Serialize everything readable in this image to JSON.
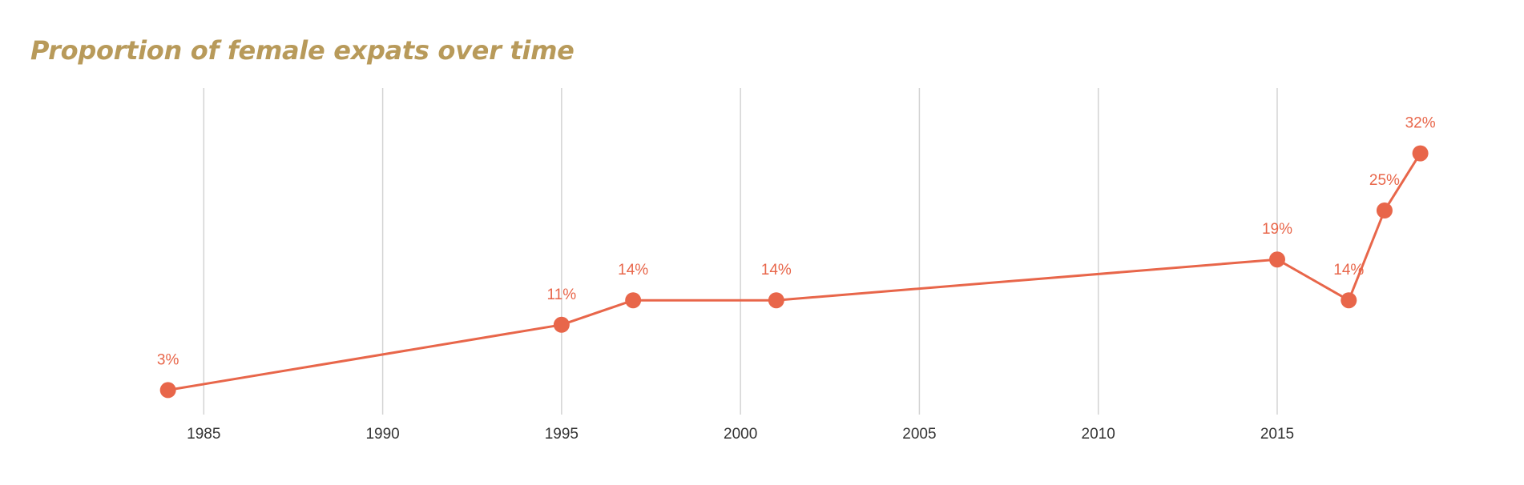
{
  "chart_data": {
    "type": "line",
    "title": "Proportion of female expats over time",
    "xlabel": "",
    "ylabel": "",
    "x_ticks": [
      "1985",
      "1990",
      "1995",
      "2000",
      "2005",
      "2010",
      "2015"
    ],
    "xlim": [
      1983,
      2019.3
    ],
    "ylim": [
      0,
      40
    ],
    "grid": "vertical",
    "legend": "none",
    "series": [
      {
        "color": "#e8664a",
        "points": [
          {
            "x": 1984,
            "y": 3,
            "label": "3%"
          },
          {
            "x": 1995,
            "y": 11,
            "label": "11%"
          },
          {
            "x": 1997,
            "y": 14,
            "label": "14%"
          },
          {
            "x": 2001,
            "y": 14,
            "label": "14%"
          },
          {
            "x": 2015,
            "y": 19,
            "label": "19%"
          },
          {
            "x": 2017,
            "y": 14,
            "label": "14%"
          },
          {
            "x": 2018,
            "y": 25,
            "label": "25%"
          },
          {
            "x": 2019,
            "y": 32,
            "label": "32%"
          }
        ]
      }
    ]
  },
  "colors": {
    "title": "#b89a5a",
    "line": "#e8664a",
    "grid": "#d3d3d3",
    "tick_text": "#333333"
  }
}
